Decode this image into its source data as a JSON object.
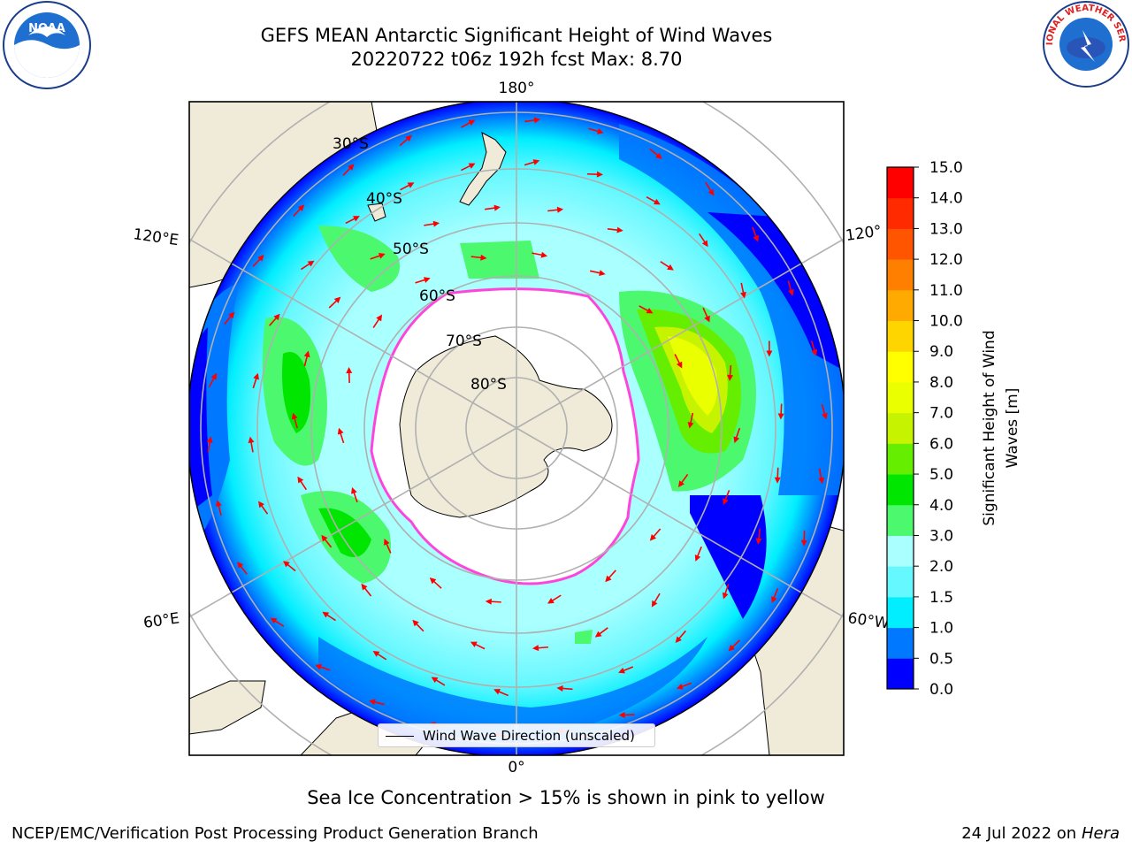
{
  "title": {
    "line1": "GEFS MEAN Antarctic Significant Height of Wind Waves",
    "line2": "20220722 t06z 192h fcst   Max: 8.70"
  },
  "logos": {
    "left": "noaa-logo",
    "left_text": "NOAA",
    "right": "nws-logo",
    "right_text": "NATIONAL WEATHER SERVICE"
  },
  "map": {
    "projection": "south-polar-stereographic",
    "longitude_labels": [
      "180°",
      "120°E",
      "120°",
      "60°E",
      "60°W",
      "0°"
    ],
    "latitude_labels": [
      "30°S",
      "40°S",
      "50°S",
      "60°S",
      "70°S",
      "80°S"
    ],
    "legend_label": "Wind Wave Direction (unscaled)",
    "arrow_color": "#ff0000",
    "land_color": "#efebd8",
    "ocean_calm_color": "#0000ff"
  },
  "colorbar": {
    "label_line1": "Significant Height of Wind",
    "label_line2": "Waves [m]",
    "ticks": [
      "0.0",
      "0.5",
      "1.0",
      "1.5",
      "2.0",
      "3.0",
      "4.0",
      "5.0",
      "6.0",
      "7.0",
      "8.0",
      "9.0",
      "10.0",
      "11.0",
      "12.0",
      "13.0",
      "14.0",
      "15.0"
    ],
    "colors": [
      "#0000ff",
      "#0078ff",
      "#00eeff",
      "#66f8ff",
      "#aaffff",
      "#4cf86d",
      "#00e600",
      "#66ee00",
      "#c6f300",
      "#eaff00",
      "#ffff00",
      "#ffd500",
      "#ffaa00",
      "#ff8000",
      "#ff5500",
      "#ff2a00",
      "#ff0000"
    ]
  },
  "note": "Sea Ice Concentration > 15% is shown in pink to yellow",
  "footer": {
    "left": "NCEP/EMC/Verification Post Processing Product Generation Branch",
    "right_prefix": "24 Jul 2022 on ",
    "right_host": "Hera"
  }
}
